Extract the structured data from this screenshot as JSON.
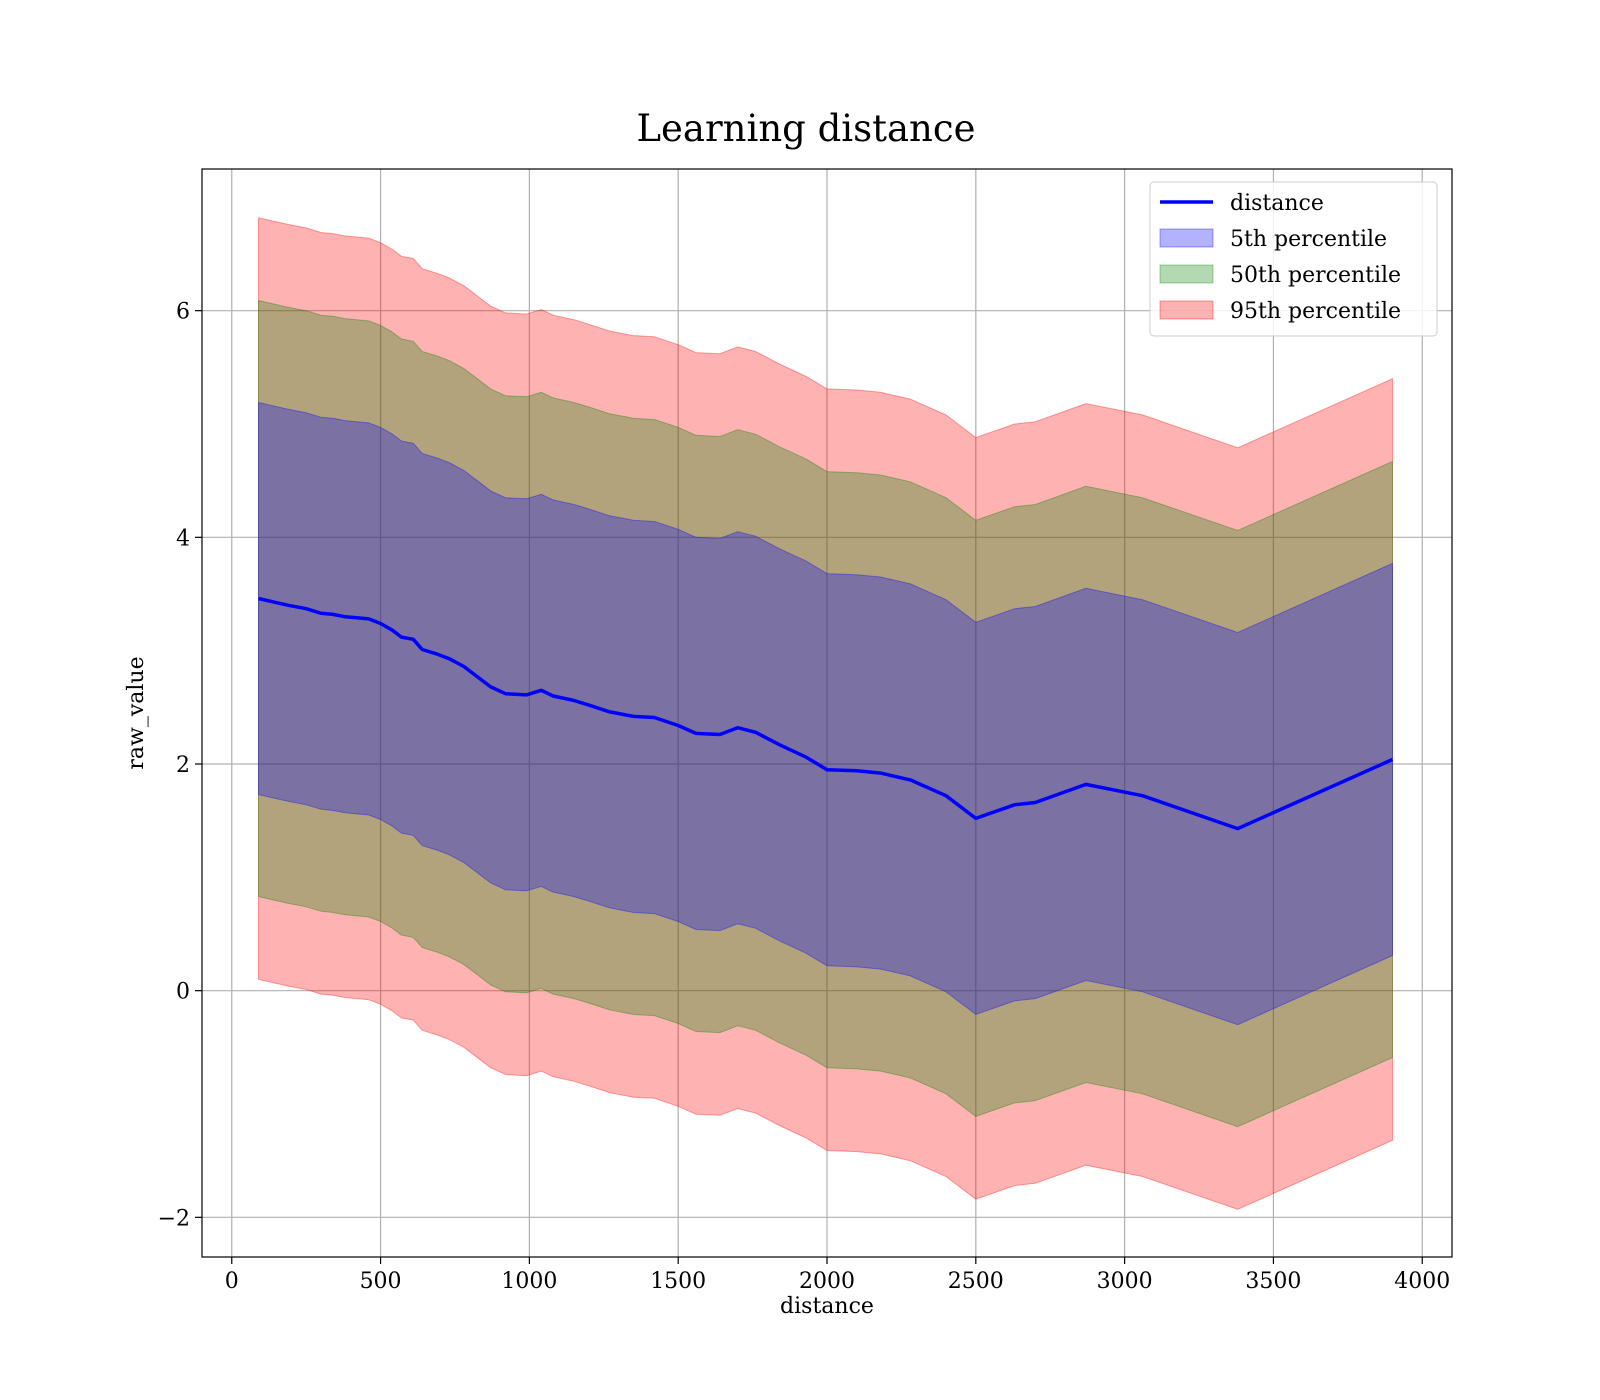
{
  "chart_data": {
    "type": "line",
    "title": "Learning distance",
    "xlabel": "distance",
    "ylabel": "raw_value",
    "xlim": [
      -100,
      4100
    ],
    "ylim": [
      -2.35,
      7.25
    ],
    "xticks": [
      0,
      500,
      1000,
      1500,
      2000,
      2500,
      3000,
      3500,
      4000
    ],
    "yticks": [
      -2,
      0,
      2,
      4,
      6
    ],
    "xtick_labels": [
      "0",
      "500",
      "1000",
      "1500",
      "2000",
      "2500",
      "3000",
      "3500",
      "4000"
    ],
    "ytick_labels": [
      "−2",
      "0",
      "2",
      "4",
      "6"
    ],
    "grid": true,
    "legend_position": "top-right",
    "x": [
      90,
      140,
      190,
      250,
      300,
      340,
      380,
      420,
      460,
      500,
      540,
      570,
      610,
      640,
      690,
      730,
      780,
      830,
      870,
      920,
      990,
      1040,
      1080,
      1150,
      1200,
      1270,
      1350,
      1420,
      1500,
      1560,
      1640,
      1700,
      1760,
      1840,
      1930,
      2000,
      2100,
      2180,
      2280,
      2400,
      2500,
      2630,
      2700,
      2870,
      3060,
      3380,
      3900
    ],
    "series": [
      {
        "name": "distance",
        "kind": "line",
        "color": "#0000ff",
        "values": [
          3.46,
          3.43,
          3.4,
          3.37,
          3.33,
          3.32,
          3.3,
          3.29,
          3.28,
          3.24,
          3.18,
          3.12,
          3.1,
          3.01,
          2.97,
          2.93,
          2.86,
          2.76,
          2.68,
          2.62,
          2.61,
          2.65,
          2.6,
          2.56,
          2.52,
          2.46,
          2.42,
          2.41,
          2.34,
          2.27,
          2.26,
          2.32,
          2.28,
          2.17,
          2.06,
          1.95,
          1.94,
          1.92,
          1.86,
          1.72,
          1.52,
          1.64,
          1.66,
          1.82,
          1.72,
          1.43,
          2.04
        ]
      },
      {
        "name": "5th percentile",
        "kind": "band",
        "color": "#0000ff",
        "half_width": 1.73
      },
      {
        "name": "50th percentile",
        "kind": "band",
        "color": "#008000",
        "half_width": 2.63
      },
      {
        "name": "95th percentile",
        "kind": "band",
        "color": "#ff0000",
        "half_width": 3.36
      }
    ]
  }
}
